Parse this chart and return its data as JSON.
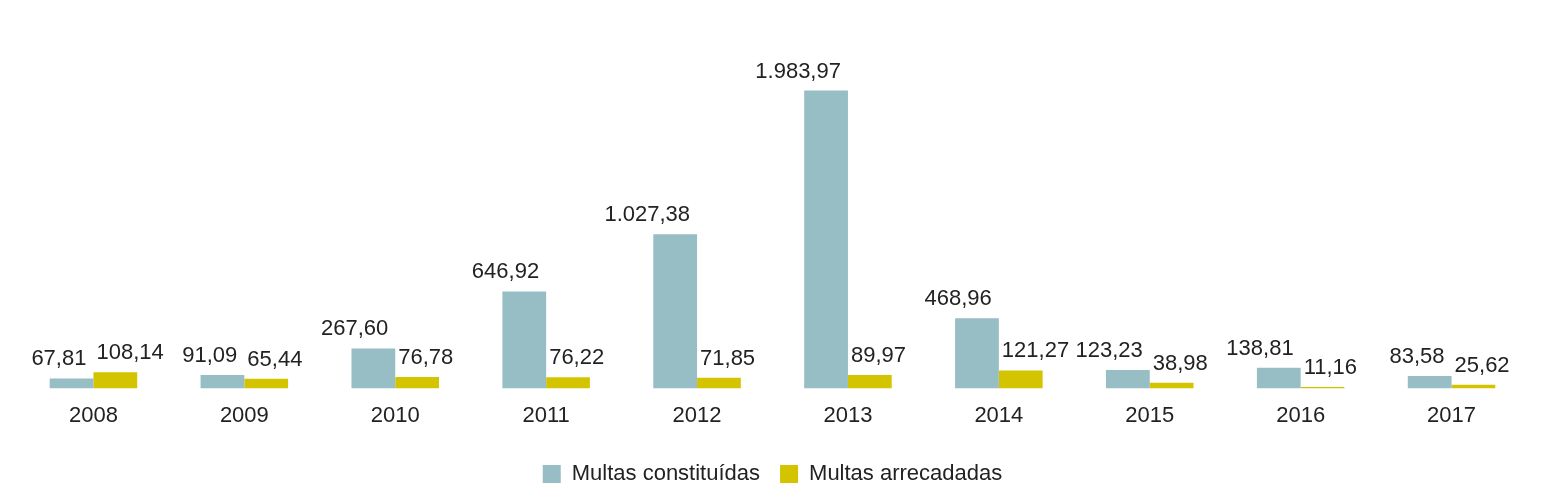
{
  "chart_data": {
    "type": "bar",
    "categories": [
      "2008",
      "2009",
      "2010",
      "2011",
      "2012",
      "2013",
      "2014",
      "2015",
      "2016",
      "2017"
    ],
    "series": [
      {
        "name": "Multas constituídas",
        "color": "#97bdc5",
        "values": [
          67.81,
          91.09,
          267.6,
          646.92,
          1027.38,
          1983.97,
          468.96,
          123.23,
          138.81,
          83.58
        ],
        "value_labels": [
          "67,81",
          "91,09",
          "267,60",
          "646,92",
          "1.027,38",
          "1.983,97",
          "468,96",
          "123,23",
          "138,81",
          "83,58"
        ]
      },
      {
        "name": "Multas arrecadadas",
        "color": "#d4c400",
        "values": [
          108.14,
          65.44,
          76.78,
          76.22,
          71.85,
          89.97,
          121.27,
          38.98,
          11.16,
          25.62
        ],
        "value_labels": [
          "108,14",
          "65,44",
          "76,78",
          "76,22",
          "71,85",
          "89,97",
          "121,27",
          "38,98",
          "11,16",
          "25,62"
        ]
      }
    ],
    "legend": "bottom",
    "grid": false
  }
}
